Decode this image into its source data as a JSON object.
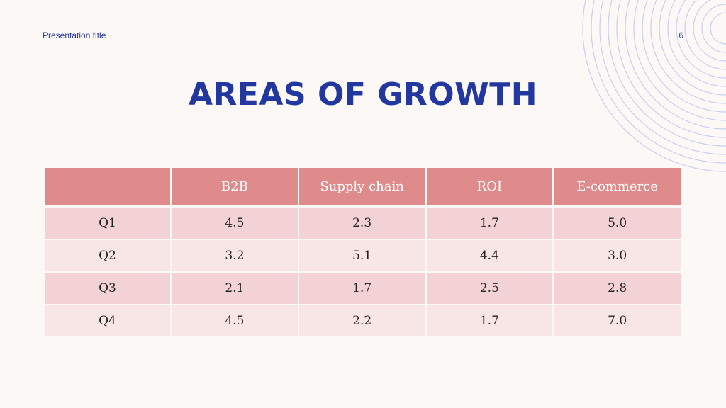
{
  "header": {
    "presentation_title": "Presentation title",
    "page_number": "6"
  },
  "slide": {
    "title": "AREAS OF GROWTH"
  },
  "table": {
    "columns": [
      "",
      "B2B",
      "Supply chain",
      "ROI",
      "E-commerce"
    ],
    "rows": [
      {
        "label": "Q1",
        "values": [
          "4.5",
          "2.3",
          "1.7",
          "5.0"
        ]
      },
      {
        "label": "Q2",
        "values": [
          "3.2",
          "5.1",
          "4.4",
          "3.0"
        ]
      },
      {
        "label": "Q3",
        "values": [
          "2.1",
          "1.7",
          "2.5",
          "2.8"
        ]
      },
      {
        "label": "Q4",
        "values": [
          "4.5",
          "2.2",
          "1.7",
          "7.0"
        ]
      }
    ]
  },
  "colors": {
    "background": "#fcf8f6",
    "title": "#2238a0",
    "header_row": "#df8a8b",
    "row_odd": "#f2d2d4",
    "row_even": "#f8e5e5",
    "rings": "#c7d0ee"
  }
}
